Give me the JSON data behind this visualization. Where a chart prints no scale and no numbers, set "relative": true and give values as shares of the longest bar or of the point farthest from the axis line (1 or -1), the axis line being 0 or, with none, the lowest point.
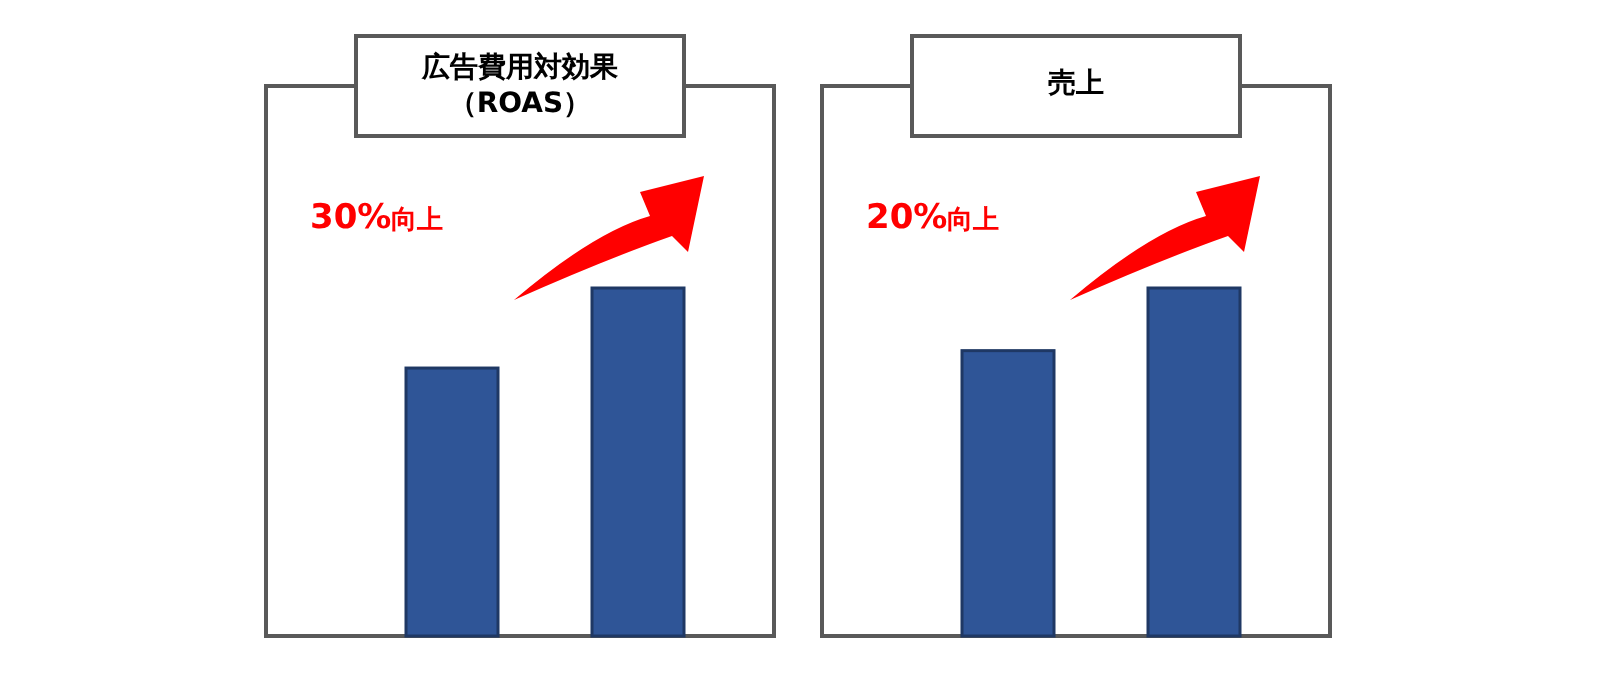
{
  "chart_data": [
    {
      "type": "bar",
      "title": "広告費用対効果（ROAS）",
      "categories": [
        null,
        null
      ],
      "values": [
        0.77,
        1
      ],
      "relative": true,
      "color": "#2f5597",
      "annotations": [
        "30%向上"
      ]
    },
    {
      "type": "bar",
      "title": "売上",
      "categories": [
        null,
        null
      ],
      "values": [
        0.82,
        1
      ],
      "relative": true,
      "color": "#2f5597",
      "annotations": [
        "20%向上"
      ]
    }
  ]
}
